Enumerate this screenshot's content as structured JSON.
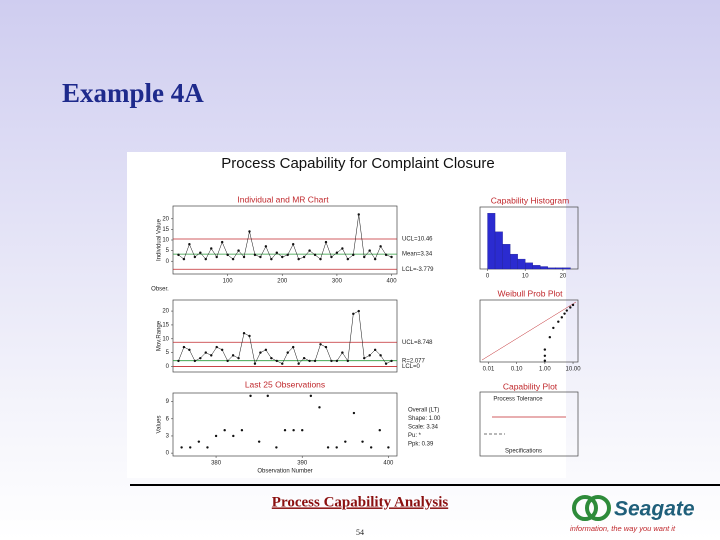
{
  "slide": {
    "title": "Example 4A",
    "footer": "Process Capability Analysis",
    "page": "54",
    "logo": {
      "name": "Seagate",
      "tagline": "information, the way you want it"
    }
  },
  "chart": {
    "title": "Process Capability for Complaint Closure",
    "i_chart": {
      "type": "line",
      "title": "Individual and MR Chart",
      "ylabel": "Individual Value",
      "xlabel": "Obser.",
      "xlim": [
        0,
        410
      ],
      "xticks": [
        100,
        200,
        300,
        400
      ],
      "ylim": [
        -6,
        26
      ],
      "yticks": [
        0,
        5,
        10,
        15,
        20
      ],
      "x": [
        10,
        20,
        30,
        40,
        50,
        60,
        70,
        80,
        90,
        100,
        110,
        120,
        130,
        140,
        150,
        160,
        170,
        180,
        190,
        200,
        210,
        220,
        230,
        240,
        250,
        260,
        270,
        280,
        290,
        300,
        310,
        320,
        330,
        340,
        350,
        360,
        370,
        380,
        390,
        400
      ],
      "values": [
        3,
        1,
        8,
        2,
        4,
        1,
        6,
        2,
        9,
        3,
        1,
        5,
        2,
        14,
        3,
        2,
        7,
        1,
        4,
        2,
        3,
        8,
        1,
        2,
        5,
        3,
        1,
        9,
        2,
        4,
        6,
        1,
        3,
        22,
        2,
        5,
        1,
        7,
        3,
        2
      ],
      "ucl": 10.46,
      "mean": 3.34,
      "lcl": -3.779,
      "ucl_label": "UCL=10.46",
      "mean_label": "Mean=3.34",
      "lcl_label": "LCL=-3.779"
    },
    "mr_chart": {
      "type": "line",
      "ylabel": "Mov.Range",
      "xlim": [
        0,
        410
      ],
      "ylim": [
        -2,
        24
      ],
      "yticks": [
        0,
        5,
        10,
        15,
        20
      ],
      "x": [
        10,
        20,
        30,
        40,
        50,
        60,
        70,
        80,
        90,
        100,
        110,
        120,
        130,
        140,
        150,
        160,
        170,
        180,
        190,
        200,
        210,
        220,
        230,
        240,
        250,
        260,
        270,
        280,
        290,
        300,
        310,
        320,
        330,
        340,
        350,
        360,
        370,
        380,
        390,
        400
      ],
      "values": [
        2,
        7,
        6,
        2,
        3,
        5,
        4,
        7,
        6,
        2,
        4,
        3,
        12,
        11,
        1,
        5,
        6,
        3,
        2,
        1,
        5,
        7,
        1,
        3,
        2,
        2,
        8,
        7,
        2,
        2,
        5,
        2,
        19,
        20,
        3,
        4,
        6,
        4,
        1,
        2
      ],
      "ucl": 8.748,
      "mean": 2.077,
      "lcl": 0,
      "ucl_label": "UCL=8.748",
      "mean_label": "R=2.077",
      "lcl_label": "LCL=0"
    },
    "last25": {
      "type": "scatter",
      "title": "Last 25 Observations",
      "xlabel": "Observation Number",
      "ylabel": "Values",
      "xlim": [
        375,
        401
      ],
      "xticks": [
        380,
        390,
        400
      ],
      "ylim": [
        -0.5,
        10.5
      ],
      "yticks": [
        0,
        3,
        6,
        9
      ],
      "x": [
        376,
        377,
        378,
        379,
        380,
        381,
        382,
        383,
        384,
        385,
        386,
        387,
        388,
        389,
        390,
        391,
        392,
        393,
        394,
        395,
        396,
        397,
        398,
        399,
        400
      ],
      "values": [
        1,
        1,
        2,
        1,
        3,
        4,
        3,
        4,
        10,
        2,
        10,
        1,
        4,
        4,
        4,
        10,
        8,
        1,
        1,
        2,
        7,
        2,
        1,
        4,
        1
      ]
    },
    "histogram": {
      "type": "histogram",
      "title": "Capability Histogram",
      "xlim": [
        -2,
        24
      ],
      "xticks": [
        0,
        10,
        20
      ],
      "ylim": [
        0,
        50
      ],
      "bins": [
        0,
        2,
        4,
        6,
        8,
        10,
        12,
        14,
        16,
        18,
        20,
        22
      ],
      "values": [
        45,
        30,
        20,
        12,
        8,
        5,
        3,
        2,
        1,
        1,
        1
      ]
    },
    "weibull": {
      "type": "scatter",
      "title": "Weibull Prob Plot",
      "log_x": true,
      "xlim": [
        0.005,
        15
      ],
      "xticks": [
        0.01,
        {
          "value": 0.1,
          "label": "0.10"
        },
        {
          "value": 1,
          "label": "1.00"
        },
        {
          "value": 10,
          "label": "10.00"
        }
      ],
      "ylim": [
        0,
        100
      ],
      "x": [
        1,
        1,
        1,
        1.5,
        2,
        3,
        4,
        5,
        6,
        8,
        10
      ],
      "values": [
        2,
        10,
        20,
        40,
        55,
        65,
        72,
        78,
        83,
        88,
        92
      ]
    },
    "capability": {
      "title": "Capability Plot",
      "tolerance": "Process Tolerance",
      "specs": "Specifications",
      "stats": [
        "Overall (LT)",
        "Shape: 1.00",
        "Scale: 3.34",
        "Pu:   *",
        "Ppk:   0.39"
      ]
    }
  }
}
